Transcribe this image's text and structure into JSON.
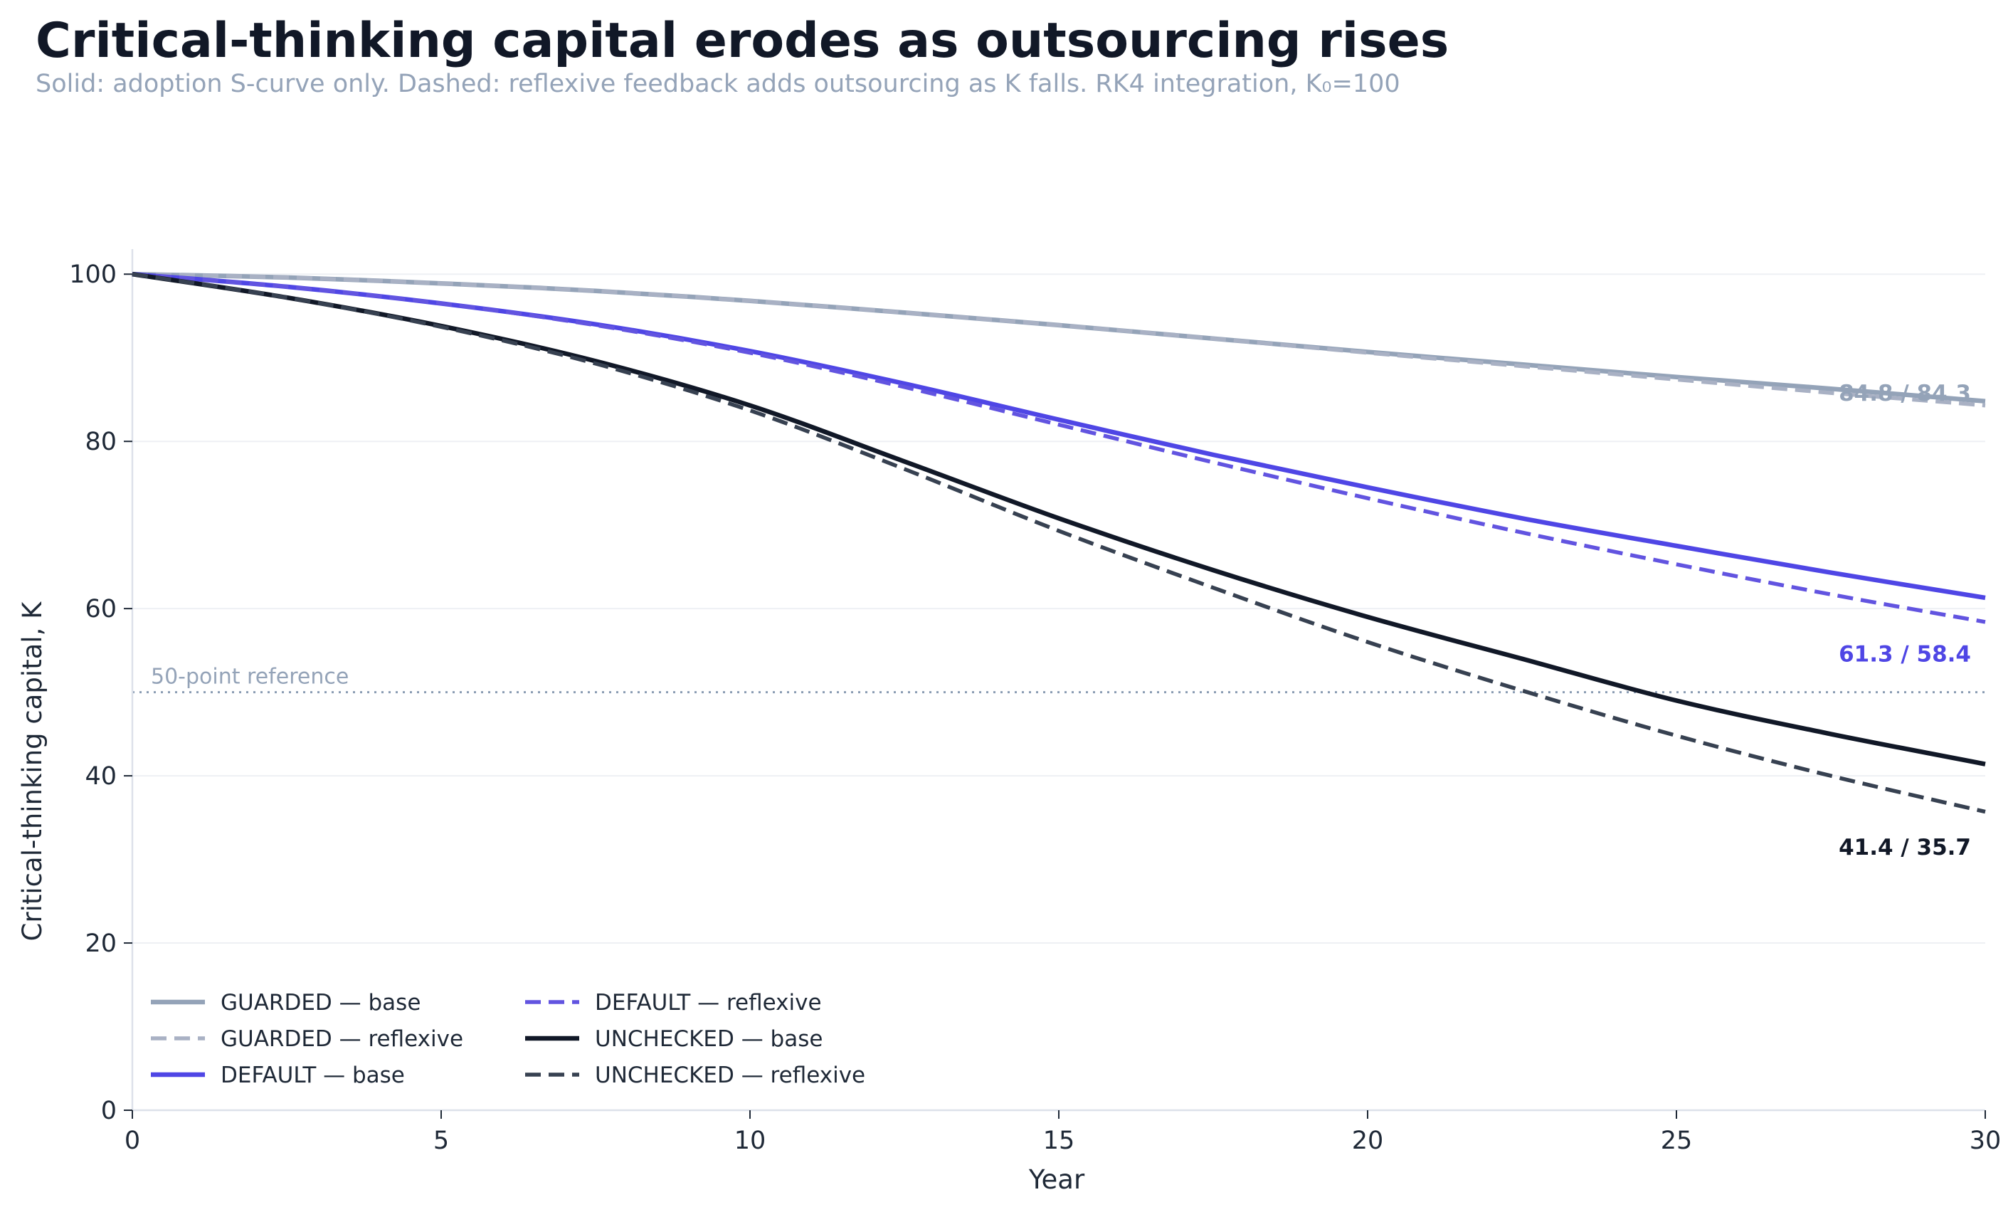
{
  "title": "Critical-thinking capital erodes as outsourcing rises",
  "subtitle": "Solid: adoption S-curve only. Dashed: reflexive feedback adds outsourcing as K falls. RK4 integration, K₀=100",
  "chart_data": {
    "type": "line",
    "xlabel": "Year",
    "ylabel": "Critical-thinking capital, K",
    "xlim": [
      0,
      30
    ],
    "ylim": [
      0,
      103
    ],
    "xticks": [
      0,
      5,
      10,
      15,
      20,
      25,
      30
    ],
    "yticks": [
      0,
      20,
      40,
      60,
      80,
      100
    ],
    "grid": "horizontal",
    "legend_position": "lower-left",
    "x": [
      0,
      2.5,
      5,
      7.5,
      10,
      12.5,
      15,
      17.5,
      20,
      22.5,
      25,
      27.5,
      30
    ],
    "series": [
      {
        "name": "GUARDED — base",
        "style": "solid",
        "color": "#94a3b8",
        "values": [
          100,
          99.6,
          98.9,
          98.0,
          96.8,
          95.4,
          93.9,
          92.3,
          90.7,
          89.2,
          87.7,
          86.3,
          84.8
        ]
      },
      {
        "name": "GUARDED — reflexive",
        "style": "dashed",
        "color": "#a9b1c4",
        "values": [
          100,
          99.6,
          98.9,
          98.0,
          96.8,
          95.4,
          93.9,
          92.3,
          90.6,
          89.0,
          87.4,
          85.8,
          84.3
        ]
      },
      {
        "name": "DEFAULT — base",
        "style": "solid",
        "color": "#4f46e5",
        "values": [
          100,
          98.5,
          96.5,
          94.0,
          90.8,
          86.9,
          82.6,
          78.4,
          74.5,
          70.8,
          67.5,
          64.3,
          61.3
        ]
      },
      {
        "name": "DEFAULT — reflexive",
        "style": "dashed",
        "color": "#6254e0",
        "values": [
          100,
          98.5,
          96.5,
          93.9,
          90.6,
          86.5,
          82.0,
          77.5,
          73.2,
          69.1,
          65.3,
          61.7,
          58.4
        ]
      },
      {
        "name": "UNCHECKED — base",
        "style": "solid",
        "color": "#111827",
        "values": [
          100,
          97.2,
          93.8,
          89.6,
          84.3,
          77.6,
          70.8,
          64.6,
          59.0,
          54.0,
          49.0,
          45.0,
          41.4
        ]
      },
      {
        "name": "UNCHECKED — reflexive",
        "style": "dashed",
        "color": "#374151",
        "values": [
          100,
          97.2,
          93.7,
          89.3,
          83.7,
          76.7,
          69.3,
          62.5,
          56.0,
          50.2,
          44.8,
          40.0,
          35.7
        ]
      }
    ],
    "reference_line": {
      "y": 50,
      "label": "50-point reference",
      "color": "#8a9cb3"
    },
    "end_labels": [
      {
        "text": "84.8 / 84.3",
        "color": "#94a3b8",
        "y_at": 85.8
      },
      {
        "text": "61.3 / 58.4",
        "color": "#4f46e5",
        "y_at": 54.6
      },
      {
        "text": "41.4 / 35.7",
        "color": "#111827",
        "y_at": 31.5
      }
    ]
  }
}
